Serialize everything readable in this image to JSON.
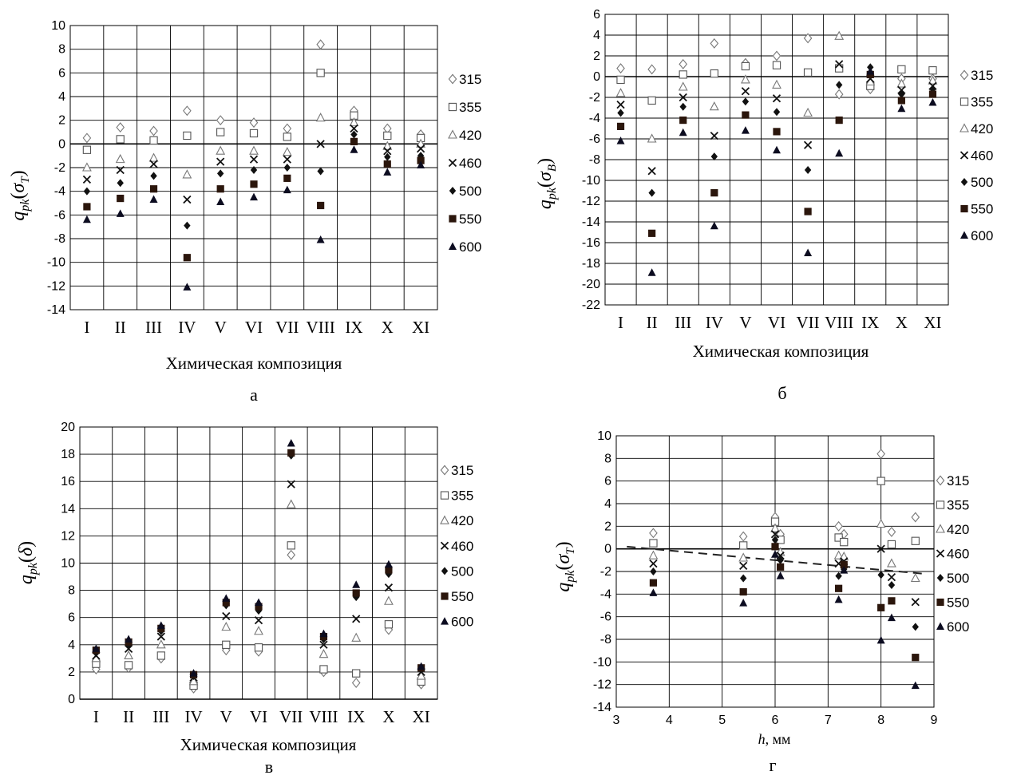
{
  "chart_data": [
    {
      "id": "a",
      "type": "scatter",
      "caption": "а",
      "ylabel": "q_pk(σ_T)",
      "xlabel": "Химическая композиция",
      "categories": [
        "I",
        "II",
        "III",
        "IV",
        "V",
        "VI",
        "VII",
        "VIII",
        "IX",
        "X",
        "XI"
      ],
      "ylim": [
        -14,
        10
      ],
      "yticks": [
        -14,
        -12,
        -10,
        -8,
        -6,
        -4,
        -2,
        0,
        2,
        4,
        6,
        8,
        10
      ],
      "series": [
        {
          "name": "315",
          "marker": "diamond-open",
          "values": [
            0.5,
            1.4,
            1.1,
            2.8,
            2.0,
            1.8,
            1.3,
            8.4,
            2.8,
            1.3,
            0.8
          ]
        },
        {
          "name": "355",
          "marker": "square-open",
          "values": [
            -0.5,
            0.4,
            0.3,
            0.7,
            1.0,
            0.9,
            0.6,
            6.0,
            2.4,
            0.7,
            0.5
          ]
        },
        {
          "name": "420",
          "marker": "triangle-open",
          "values": [
            -2.0,
            -1.3,
            -1.2,
            -2.6,
            -0.6,
            -0.6,
            -0.7,
            2.2,
            1.8,
            -0.2,
            0.0
          ]
        },
        {
          "name": "460",
          "marker": "cross",
          "values": [
            -3.0,
            -2.2,
            -1.7,
            -4.7,
            -1.5,
            -1.3,
            -1.3,
            0.0,
            1.3,
            -0.6,
            -0.4
          ]
        },
        {
          "name": "500",
          "marker": "diamond-filled",
          "values": [
            -4.0,
            -3.3,
            -2.7,
            -6.9,
            -2.5,
            -2.2,
            -2.0,
            -2.3,
            0.8,
            -1.1,
            -1.0
          ]
        },
        {
          "name": "550",
          "marker": "square-filled",
          "values": [
            -5.3,
            -4.6,
            -3.8,
            -9.6,
            -3.8,
            -3.4,
            -2.9,
            -5.2,
            0.2,
            -1.7,
            -1.4
          ]
        },
        {
          "name": "600",
          "marker": "triangle-filled",
          "values": [
            -6.4,
            -5.9,
            -4.7,
            -12.1,
            -4.9,
            -4.5,
            -3.9,
            -8.1,
            -0.5,
            -2.4,
            -1.8
          ]
        }
      ]
    },
    {
      "id": "b",
      "type": "scatter",
      "caption": "б",
      "ylabel": "q_pk(σ_B)",
      "xlabel": "Химическая композиция",
      "categories": [
        "I",
        "II",
        "III",
        "IV",
        "V",
        "VI",
        "VII",
        "VIII",
        "IX",
        "X",
        "XI"
      ],
      "ylim": [
        -22,
        6
      ],
      "yticks": [
        -22,
        -20,
        -18,
        -16,
        -14,
        -12,
        -10,
        -8,
        -6,
        -4,
        -2,
        0,
        2,
        4,
        6
      ],
      "series": [
        {
          "name": "315",
          "marker": "diamond-open",
          "values": [
            0.8,
            0.7,
            1.2,
            3.2,
            1.3,
            2.0,
            3.7,
            -1.7,
            -1.2,
            -0.2,
            -0.2
          ]
        },
        {
          "name": "355",
          "marker": "square-open",
          "values": [
            -0.3,
            -2.3,
            0.2,
            0.3,
            1.0,
            1.1,
            0.4,
            0.8,
            -0.9,
            0.7,
            0.6
          ]
        },
        {
          "name": "420",
          "marker": "triangle-open",
          "values": [
            -1.6,
            -6.0,
            -1.0,
            -2.9,
            -0.3,
            -0.8,
            -3.5,
            3.9,
            -0.5,
            -0.7,
            -0.4
          ]
        },
        {
          "name": "460",
          "marker": "cross",
          "values": [
            -2.7,
            -9.1,
            -2.0,
            -5.7,
            -1.4,
            -2.1,
            -6.6,
            1.2,
            -0.2,
            -1.3,
            -0.9
          ]
        },
        {
          "name": "500",
          "marker": "diamond-filled",
          "values": [
            -3.5,
            -11.2,
            -2.9,
            -7.7,
            -2.4,
            -3.4,
            -9.0,
            -0.8,
            0.9,
            -1.7,
            -1.2
          ]
        },
        {
          "name": "550",
          "marker": "square-filled",
          "values": [
            -4.8,
            -15.1,
            -4.2,
            -11.2,
            -3.7,
            -5.3,
            -13.0,
            -4.2,
            0.2,
            -2.3,
            -1.7
          ]
        },
        {
          "name": "600",
          "marker": "triangle-filled",
          "values": [
            -6.2,
            -18.9,
            -5.4,
            -14.4,
            -5.2,
            -7.1,
            -17.0,
            -7.4,
            0.5,
            -3.1,
            -2.5
          ]
        }
      ]
    },
    {
      "id": "v",
      "type": "scatter",
      "caption": "в",
      "ylabel": "q_pk(δ)",
      "xlabel": "Химическая композиция",
      "categories": [
        "I",
        "II",
        "III",
        "IV",
        "V",
        "VI",
        "VII",
        "VIII",
        "IX",
        "X",
        "XI"
      ],
      "ylim": [
        0,
        20
      ],
      "yticks": [
        0,
        2,
        4,
        6,
        8,
        10,
        12,
        14,
        16,
        18,
        20
      ],
      "series": [
        {
          "name": "315",
          "marker": "diamond-open",
          "values": [
            2.2,
            2.3,
            3.0,
            0.8,
            3.6,
            3.5,
            10.6,
            2.0,
            1.2,
            5.1,
            1.1
          ]
        },
        {
          "name": "355",
          "marker": "square-open",
          "values": [
            2.6,
            2.5,
            3.2,
            1.0,
            4.0,
            3.8,
            11.3,
            2.2,
            1.9,
            5.5,
            1.3
          ]
        },
        {
          "name": "420",
          "marker": "triangle-open",
          "values": [
            3.0,
            3.2,
            4.0,
            1.3,
            5.3,
            5.0,
            14.3,
            3.3,
            4.5,
            7.2,
            1.7
          ]
        },
        {
          "name": "460",
          "marker": "cross",
          "values": [
            3.2,
            3.7,
            4.6,
            1.6,
            6.1,
            5.8,
            15.8,
            4.0,
            5.9,
            8.2,
            2.0
          ]
        },
        {
          "name": "500",
          "marker": "diamond-filled",
          "values": [
            3.4,
            4.0,
            5.0,
            1.7,
            6.9,
            6.5,
            17.9,
            4.4,
            7.5,
            9.2,
            2.2
          ]
        },
        {
          "name": "550",
          "marker": "square-filled",
          "values": [
            3.6,
            4.2,
            5.2,
            1.8,
            7.1,
            6.8,
            18.1,
            4.6,
            7.8,
            9.5,
            2.3
          ]
        },
        {
          "name": "600",
          "marker": "triangle-filled",
          "values": [
            3.7,
            4.4,
            5.4,
            1.9,
            7.4,
            7.1,
            18.8,
            4.8,
            8.4,
            9.9,
            2.4
          ]
        }
      ]
    },
    {
      "id": "g",
      "type": "scatter",
      "caption": "г",
      "ylabel": "q_pk(σ_T)",
      "xlabel": "h, мм",
      "xlim": [
        3,
        9
      ],
      "xticks": [
        3,
        4,
        5,
        6,
        7,
        8,
        9
      ],
      "ylim": [
        -14,
        10
      ],
      "yticks": [
        -14,
        -12,
        -10,
        -8,
        -6,
        -4,
        -2,
        0,
        2,
        4,
        6,
        8,
        10
      ],
      "x": [
        3.7,
        5.4,
        6.0,
        6.1,
        7.2,
        7.3,
        8.0,
        8.2,
        8.65
      ],
      "trendline": {
        "style": "dashed",
        "x": [
          3.2,
          8.8
        ],
        "y": [
          0.2,
          -2.2
        ]
      },
      "series": [
        {
          "name": "315",
          "marker": "diamond-open",
          "values": [
            1.4,
            1.1,
            2.8,
            1.3,
            2.0,
            1.3,
            8.4,
            1.5,
            2.8
          ]
        },
        {
          "name": "355",
          "marker": "square-open",
          "values": [
            0.5,
            0.3,
            2.4,
            0.8,
            1.0,
            0.6,
            6.0,
            0.4,
            0.7
          ]
        },
        {
          "name": "420",
          "marker": "triangle-open",
          "values": [
            -0.6,
            -0.8,
            1.8,
            -0.3,
            -0.6,
            -0.7,
            2.2,
            -1.3,
            -2.6
          ]
        },
        {
          "name": "460",
          "marker": "cross",
          "values": [
            -1.3,
            -1.5,
            1.3,
            -0.6,
            -1.3,
            -1.1,
            0.0,
            -2.5,
            -4.7
          ]
        },
        {
          "name": "500",
          "marker": "diamond-filled",
          "values": [
            -2.0,
            -2.6,
            0.8,
            -1.0,
            -2.4,
            -1.8,
            -2.3,
            -3.2,
            -6.9
          ]
        },
        {
          "name": "550",
          "marker": "square-filled",
          "values": [
            -3.0,
            -3.8,
            0.2,
            -1.6,
            -3.5,
            -1.4,
            -5.2,
            -4.6,
            -9.6
          ]
        },
        {
          "name": "600",
          "marker": "triangle-filled",
          "values": [
            -3.9,
            -4.8,
            -0.5,
            -2.4,
            -4.5,
            -1.9,
            -8.1,
            -6.1,
            -12.1
          ]
        }
      ]
    }
  ]
}
